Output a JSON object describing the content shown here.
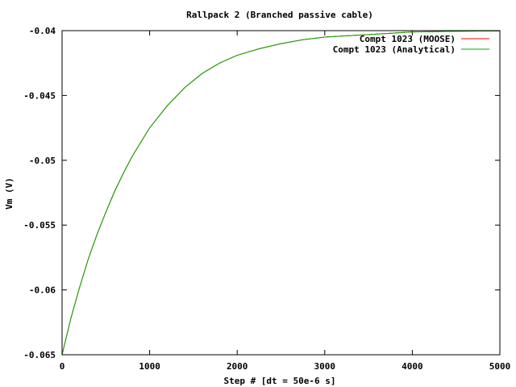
{
  "chart_data": {
    "type": "line",
    "title": "Rallpack 2 (Branched passive cable)",
    "xlabel": "Step # [dt = 50e-6 s]",
    "ylabel": "Vm (V)",
    "xlim": [
      0,
      5000
    ],
    "ylim": [
      -0.065,
      -0.04
    ],
    "x_ticks": [
      0,
      1000,
      2000,
      3000,
      4000,
      5000
    ],
    "y_ticks": [
      -0.065,
      -0.06,
      -0.055,
      -0.05,
      -0.045,
      -0.04
    ],
    "x_tick_labels": [
      "0",
      "1000",
      "2000",
      "3000",
      "4000",
      "5000"
    ],
    "y_tick_labels": [
      "-0.065",
      "-0.06",
      "-0.055",
      "-0.05",
      "-0.045",
      "-0.04"
    ],
    "grid": false,
    "legend_position": "top-right",
    "x": [
      0,
      100,
      200,
      300,
      400,
      500,
      600,
      700,
      800,
      900,
      1000,
      1200,
      1400,
      1600,
      1800,
      2000,
      2250,
      2500,
      2750,
      3000,
      3250,
      3500,
      3750,
      4000,
      4250,
      4500,
      4750,
      5000
    ],
    "series": [
      {
        "name": "Compt 1023 (MOOSE)",
        "color": "#ff0000",
        "values": [
          -0.065,
          -0.0622,
          -0.0598,
          -0.0576,
          -0.0557,
          -0.054,
          -0.0524,
          -0.051,
          -0.0497,
          -0.0486,
          -0.0475,
          -0.0458,
          -0.0444,
          -0.0433,
          -0.0425,
          -0.0419,
          -0.0414,
          -0.041,
          -0.0407,
          -0.0405,
          -0.0404,
          -0.0403,
          -0.0402,
          -0.0401,
          -0.04008,
          -0.04005,
          -0.04003,
          -0.04002
        ]
      },
      {
        "name": "Compt 1023 (Analytical)",
        "color": "#00aa00",
        "values": [
          -0.065,
          -0.0622,
          -0.0598,
          -0.0576,
          -0.0557,
          -0.054,
          -0.0524,
          -0.051,
          -0.0497,
          -0.0486,
          -0.0475,
          -0.0458,
          -0.0444,
          -0.0433,
          -0.0425,
          -0.0419,
          -0.0414,
          -0.041,
          -0.0407,
          -0.0405,
          -0.0404,
          -0.0403,
          -0.0402,
          -0.0401,
          -0.04008,
          -0.04005,
          -0.04003,
          -0.04002
        ]
      }
    ]
  }
}
